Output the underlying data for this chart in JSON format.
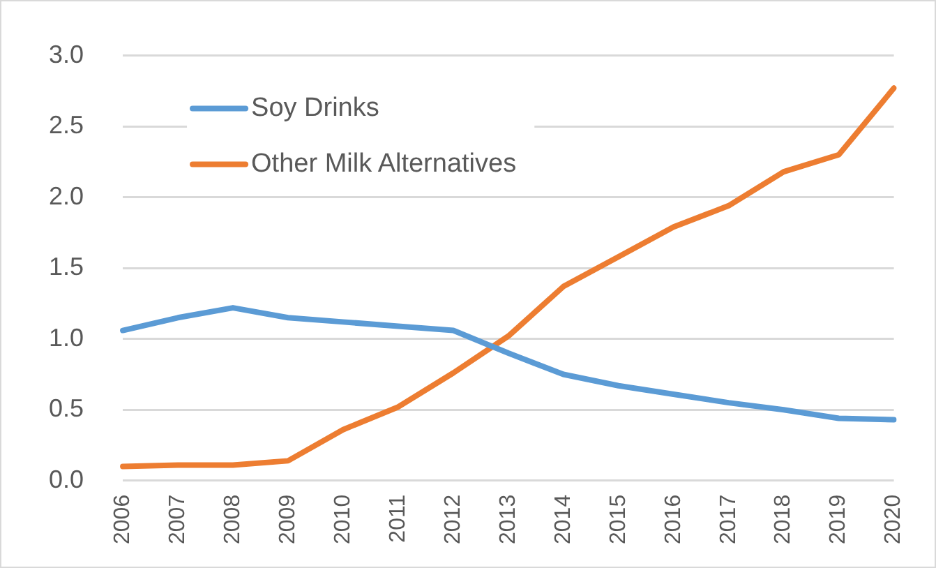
{
  "chart_data": {
    "type": "line",
    "categories": [
      "2006",
      "2007",
      "2008",
      "2009",
      "2010",
      "2011",
      "2012",
      "2013",
      "2014",
      "2015",
      "2016",
      "2017",
      "2018",
      "2019",
      "2020"
    ],
    "series": [
      {
        "name": "Soy Drinks",
        "color": "#5b9bd5",
        "values": [
          1.06,
          1.15,
          1.22,
          1.15,
          1.12,
          1.09,
          1.06,
          0.9,
          0.75,
          0.67,
          0.61,
          0.55,
          0.5,
          0.44,
          0.43
        ]
      },
      {
        "name": "Other Milk Alternatives",
        "color": "#ed7d31",
        "values": [
          0.1,
          0.11,
          0.11,
          0.14,
          0.36,
          0.52,
          0.76,
          1.02,
          1.37,
          1.58,
          1.79,
          1.94,
          2.18,
          2.3,
          2.77
        ]
      }
    ],
    "ylim": [
      0,
      3
    ],
    "yticks": [
      {
        "value": 0,
        "label": "0.0"
      },
      {
        "value": 0.5,
        "label": "0.5"
      },
      {
        "value": 1,
        "label": "1.0"
      },
      {
        "value": 1.5,
        "label": "1.5"
      },
      {
        "value": 2,
        "label": "2.0"
      },
      {
        "value": 2.5,
        "label": "2.5"
      },
      {
        "value": 3,
        "label": "3.0"
      }
    ],
    "grid": "y",
    "legend": "top left",
    "marker": "none",
    "line_style": "solid"
  }
}
